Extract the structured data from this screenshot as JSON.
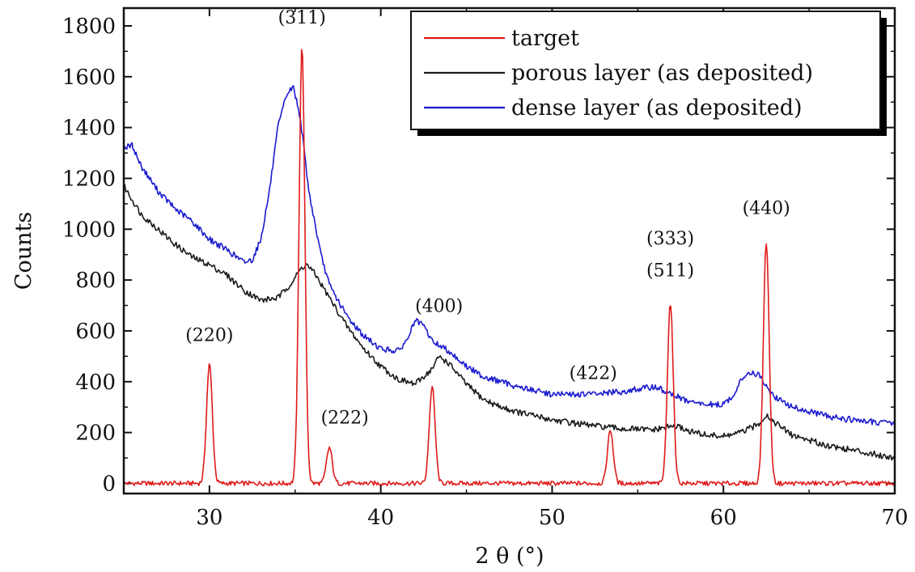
{
  "chart_data": {
    "type": "line",
    "xlabel": "2 θ (°)",
    "ylabel": "Counts",
    "xlim": [
      25,
      70
    ],
    "ylim": [
      -40,
      1870
    ],
    "x_ticks": [
      30,
      40,
      50,
      60,
      70
    ],
    "y_ticks": [
      0,
      200,
      400,
      600,
      800,
      1000,
      1200,
      1400,
      1600,
      1800
    ],
    "legend": {
      "placement": "top-right"
    },
    "grid": false,
    "series": [
      {
        "name": "target",
        "color": "#e01a1a",
        "baseline": 0,
        "x": [
          25,
          70
        ],
        "y": [
          0,
          0
        ],
        "peaks": [
          {
            "x": 30.0,
            "y": 470
          },
          {
            "x": 35.4,
            "y": 1720
          },
          {
            "x": 37.0,
            "y": 140
          },
          {
            "x": 43.0,
            "y": 380
          },
          {
            "x": 53.4,
            "y": 210
          },
          {
            "x": 56.9,
            "y": 710
          },
          {
            "x": 62.5,
            "y": 950
          }
        ]
      },
      {
        "name": "porous layer (as deposited)",
        "color": "#1a1a1a",
        "x": [
          25,
          26,
          27,
          28,
          29,
          30,
          31,
          32,
          33,
          34,
          34.8,
          35.4,
          35.7,
          36.2,
          37,
          38,
          39,
          40,
          41,
          42,
          43,
          43.4,
          44,
          45,
          46,
          47,
          48,
          50,
          52,
          54,
          56,
          57,
          57.5,
          58,
          59,
          60,
          61,
          62,
          62.5,
          63,
          64,
          66,
          68,
          70
        ],
        "y": [
          1170,
          1060,
          1000,
          940,
          890,
          860,
          820,
          760,
          720,
          730,
          790,
          850,
          860,
          820,
          730,
          620,
          530,
          460,
          410,
          390,
          450,
          500,
          470,
          390,
          330,
          300,
          280,
          250,
          230,
          215,
          210,
          225,
          220,
          205,
          190,
          185,
          200,
          230,
          270,
          240,
          190,
          150,
          125,
          100
        ]
      },
      {
        "name": "dense layer (as deposited)",
        "color": "#1a1ad0",
        "x": [
          25,
          25.5,
          26,
          27,
          28,
          29,
          30,
          31,
          32,
          32.5,
          33,
          33.5,
          34,
          34.5,
          34.9,
          35.3,
          35.8,
          36.5,
          37,
          38,
          39,
          40,
          41,
          41.5,
          42,
          42.5,
          43,
          44,
          45,
          46,
          48,
          50,
          52,
          54,
          55,
          56,
          57,
          58,
          59,
          60,
          60.5,
          61,
          61.5,
          62,
          62.5,
          63,
          64,
          66,
          68,
          70
        ],
        "y": [
          1320,
          1330,
          1250,
          1150,
          1080,
          1030,
          960,
          920,
          870,
          880,
          960,
          1150,
          1400,
          1530,
          1560,
          1440,
          1150,
          900,
          780,
          660,
          580,
          530,
          520,
          560,
          640,
          620,
          560,
          520,
          460,
          420,
          380,
          350,
          350,
          360,
          370,
          380,
          350,
          320,
          310,
          310,
          340,
          400,
          440,
          430,
          380,
          340,
          300,
          265,
          245,
          235
        ]
      }
    ],
    "annotations": [
      {
        "text": "(220)",
        "x": 30.0,
        "y": 560
      },
      {
        "text": "(311)",
        "x": 35.4,
        "y": 1810
      },
      {
        "text": "(222)",
        "x": 37.9,
        "y": 235
      },
      {
        "text": "(400)",
        "x": 43.4,
        "y": 675
      },
      {
        "text": "(422)",
        "x": 52.4,
        "y": 410
      },
      {
        "text": "(333)",
        "x": 56.9,
        "y": 940
      },
      {
        "text": "(511)",
        "x": 56.9,
        "y": 815
      },
      {
        "text": "(440)",
        "x": 62.5,
        "y": 1060
      }
    ]
  }
}
